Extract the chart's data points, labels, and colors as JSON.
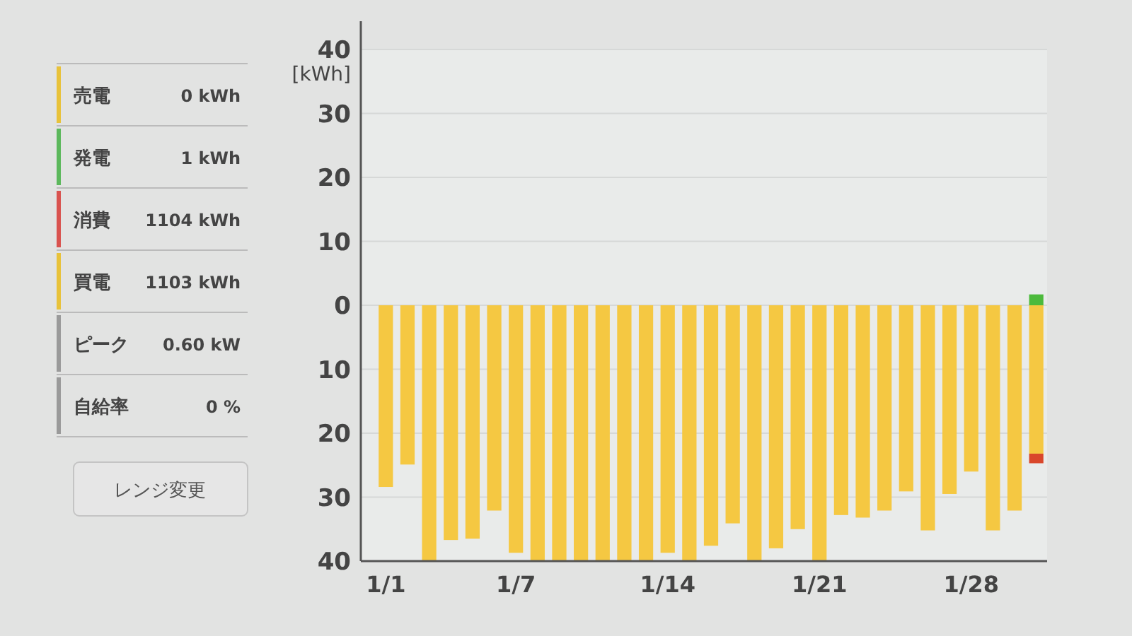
{
  "chart_data": [
    {
      "type": "other",
      "categories": [
        "売電",
        "発電",
        "消費",
        "買電",
        "ピーク",
        "自給率"
      ],
      "value_labels": [
        "0 kWh",
        "1 kWh",
        "1104 kWh",
        "1103 kWh",
        "0.60 kW",
        "0 %"
      ],
      "colors": [
        "#e8c23a",
        "#5cb85c",
        "#d9534f",
        "#e8c23a",
        "#9a9a9a",
        "#9a9a9a"
      ],
      "annotations": [
        "レンジ変更"
      ]
    },
    {
      "type": "bar",
      "stacked": true,
      "ylabel": "[kWh]",
      "ylim": [
        -40,
        40
      ],
      "yticks": [
        40,
        30,
        20,
        10,
        0,
        {
          "value": -10,
          "label": "10"
        },
        {
          "value": -20,
          "label": "20"
        },
        {
          "value": -30,
          "label": "30"
        },
        {
          "value": -40,
          "label": "40"
        }
      ],
      "grid": "y",
      "categories": [
        "1/1",
        null,
        null,
        null,
        null,
        null,
        "1/7",
        null,
        null,
        null,
        null,
        null,
        null,
        "1/14",
        null,
        null,
        null,
        null,
        null,
        null,
        "1/21",
        null,
        null,
        null,
        null,
        null,
        null,
        "1/28",
        null,
        null,
        null
      ],
      "series": [
        {
          "color": "#f5c842",
          "values": [
            -28.4,
            -24.9,
            -40,
            -36.7,
            -36.5,
            -32.1,
            -38.7,
            -40,
            -40,
            -40,
            -40,
            -40,
            -40,
            -38.7,
            -40,
            -37.6,
            -34.1,
            -40,
            -38,
            -35,
            -40,
            -32.8,
            -33.2,
            -32.1,
            -29.1,
            -35.2,
            -29.5,
            -26,
            -35.2,
            -32.1,
            -23.2
          ]
        },
        {
          "color": "#4cba3c",
          "values": [
            null,
            null,
            null,
            null,
            null,
            null,
            null,
            null,
            null,
            null,
            null,
            null,
            null,
            null,
            null,
            null,
            null,
            null,
            null,
            null,
            null,
            null,
            null,
            null,
            null,
            null,
            null,
            null,
            null,
            null,
            1.7
          ]
        },
        {
          "color": "#d9472b",
          "values": [
            null,
            null,
            null,
            null,
            null,
            null,
            null,
            null,
            null,
            null,
            null,
            null,
            null,
            null,
            null,
            null,
            null,
            null,
            null,
            null,
            null,
            null,
            null,
            null,
            null,
            null,
            null,
            null,
            null,
            null,
            -1.5
          ]
        }
      ]
    }
  ]
}
